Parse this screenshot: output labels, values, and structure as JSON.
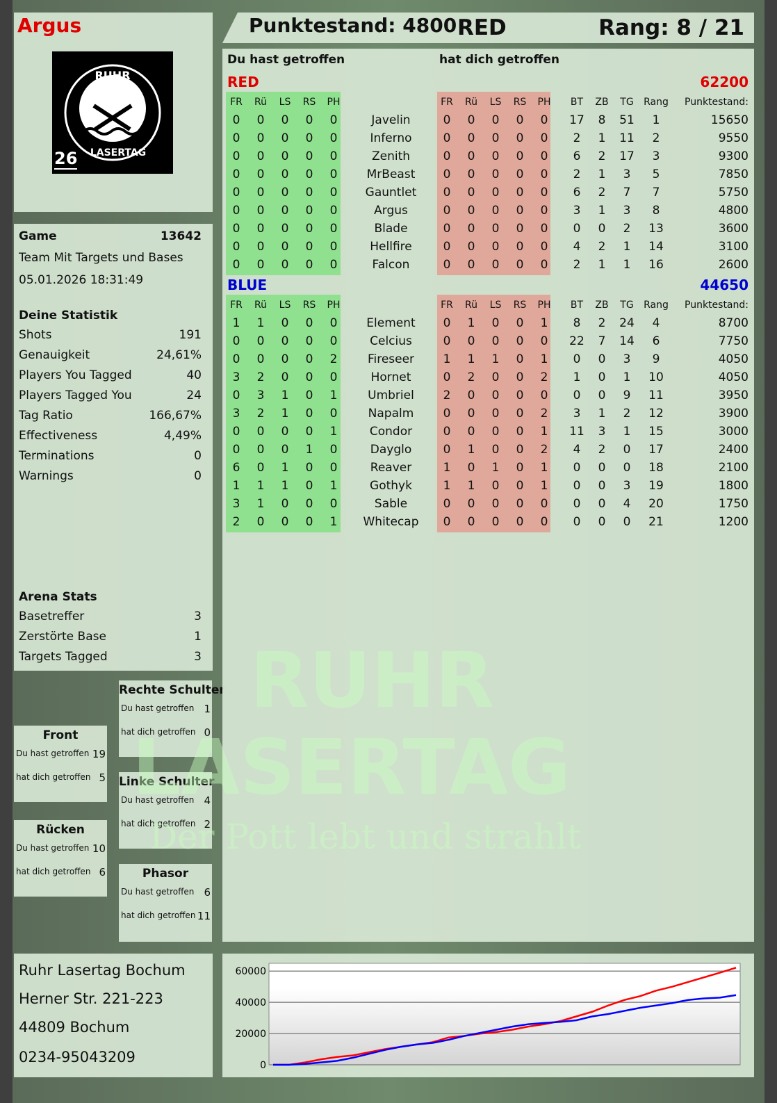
{
  "player": {
    "name": "Argus",
    "logo_text": "RUHR LASERTAG",
    "logo_number": "26"
  },
  "header": {
    "score_label": "Punktestand: 4800",
    "team": "RED",
    "rank_label": "Rang: 8 / 21"
  },
  "game": {
    "label": "Game",
    "id": "13642",
    "mode": "Team Mit Targets und Bases",
    "datetime": "05.01.2026 18:31:49"
  },
  "stats": {
    "title": "Deine Statistik",
    "items": [
      {
        "label": "Shots",
        "value": "191"
      },
      {
        "label": "Genauigkeit",
        "value": "24,61%"
      },
      {
        "label": "Players You Tagged",
        "value": "40"
      },
      {
        "label": "Players Tagged You",
        "value": "24"
      },
      {
        "label": "Tag Ratio",
        "value": "166,67%"
      },
      {
        "label": "Effectiveness",
        "value": "4,49%"
      },
      {
        "label": "Terminations",
        "value": "0"
      },
      {
        "label": "Warnings",
        "value": "0"
      }
    ]
  },
  "arena": {
    "title": "Arena Stats",
    "items": [
      {
        "label": "Basetreffer",
        "value": "3"
      },
      {
        "label": "Zerstörte Base",
        "value": "1"
      },
      {
        "label": "Targets Tagged",
        "value": "3"
      }
    ]
  },
  "zones": {
    "hit_label": "Du hast getroffen",
    "got_label": "hat dich getroffen",
    "items": [
      {
        "name": "Rechte Schulter",
        "hit": "1",
        "got": "0"
      },
      {
        "name": "Front",
        "hit": "19",
        "got": "5"
      },
      {
        "name": "Linke Schulter",
        "hit": "4",
        "got": "2"
      },
      {
        "name": "Rücken",
        "hit": "10",
        "got": "6"
      },
      {
        "name": "Phasor",
        "hit": "6",
        "got": "11"
      }
    ]
  },
  "address": {
    "lines": [
      "Ruhr Lasertag Bochum",
      "Herner Str. 221-223",
      "44809 Bochum",
      "0234-95043209"
    ]
  },
  "table": {
    "you_hit_label": "Du hast getroffen",
    "hit_you_label": "hat dich getroffen",
    "hit_cols": [
      "FR",
      "Rü",
      "LS",
      "RS",
      "PH"
    ],
    "stat_cols": [
      "BT",
      "ZB",
      "TG",
      "Rang",
      "Punktestand:"
    ],
    "colors": {
      "green": "#8fe08f",
      "red": "#e0a89a",
      "red_team": "#e00000",
      "blue_team": "#0000d0"
    },
    "teams": [
      {
        "name": "RED",
        "score": "62200",
        "color": "#e00000",
        "players": [
          {
            "name": "Javelin",
            "hit": [
              0,
              0,
              0,
              0,
              0
            ],
            "got": [
              0,
              0,
              0,
              0,
              0
            ],
            "stats": [
              17,
              8,
              51,
              1,
              15650
            ]
          },
          {
            "name": "Inferno",
            "hit": [
              0,
              0,
              0,
              0,
              0
            ],
            "got": [
              0,
              0,
              0,
              0,
              0
            ],
            "stats": [
              2,
              1,
              11,
              2,
              9550
            ]
          },
          {
            "name": "Zenith",
            "hit": [
              0,
              0,
              0,
              0,
              0
            ],
            "got": [
              0,
              0,
              0,
              0,
              0
            ],
            "stats": [
              6,
              2,
              17,
              3,
              9300
            ]
          },
          {
            "name": "MrBeast",
            "hit": [
              0,
              0,
              0,
              0,
              0
            ],
            "got": [
              0,
              0,
              0,
              0,
              0
            ],
            "stats": [
              2,
              1,
              3,
              5,
              7850
            ]
          },
          {
            "name": "Gauntlet",
            "hit": [
              0,
              0,
              0,
              0,
              0
            ],
            "got": [
              0,
              0,
              0,
              0,
              0
            ],
            "stats": [
              6,
              2,
              7,
              7,
              5750
            ]
          },
          {
            "name": "Argus",
            "hit": [
              0,
              0,
              0,
              0,
              0
            ],
            "got": [
              0,
              0,
              0,
              0,
              0
            ],
            "stats": [
              3,
              1,
              3,
              8,
              4800
            ]
          },
          {
            "name": "Blade",
            "hit": [
              0,
              0,
              0,
              0,
              0
            ],
            "got": [
              0,
              0,
              0,
              0,
              0
            ],
            "stats": [
              0,
              0,
              2,
              13,
              3600
            ]
          },
          {
            "name": "Hellfire",
            "hit": [
              0,
              0,
              0,
              0,
              0
            ],
            "got": [
              0,
              0,
              0,
              0,
              0
            ],
            "stats": [
              4,
              2,
              1,
              14,
              3100
            ]
          },
          {
            "name": "Falcon",
            "hit": [
              0,
              0,
              0,
              0,
              0
            ],
            "got": [
              0,
              0,
              0,
              0,
              0
            ],
            "stats": [
              2,
              1,
              1,
              16,
              2600
            ]
          }
        ]
      },
      {
        "name": "BLUE",
        "score": "44650",
        "color": "#0000d0",
        "players": [
          {
            "name": "Element",
            "hit": [
              1,
              1,
              0,
              0,
              0
            ],
            "got": [
              0,
              1,
              0,
              0,
              1
            ],
            "stats": [
              8,
              2,
              24,
              4,
              8700
            ]
          },
          {
            "name": "Celcius",
            "hit": [
              0,
              0,
              0,
              0,
              0
            ],
            "got": [
              0,
              0,
              0,
              0,
              0
            ],
            "stats": [
              22,
              7,
              14,
              6,
              7750
            ]
          },
          {
            "name": "Fireseer",
            "hit": [
              0,
              0,
              0,
              0,
              2
            ],
            "got": [
              1,
              1,
              1,
              0,
              1
            ],
            "stats": [
              0,
              0,
              3,
              9,
              4050
            ]
          },
          {
            "name": "Hornet",
            "hit": [
              3,
              2,
              0,
              0,
              0
            ],
            "got": [
              0,
              2,
              0,
              0,
              2
            ],
            "stats": [
              1,
              0,
              1,
              10,
              4050
            ]
          },
          {
            "name": "Umbriel",
            "hit": [
              0,
              3,
              1,
              0,
              1
            ],
            "got": [
              2,
              0,
              0,
              0,
              0
            ],
            "stats": [
              0,
              0,
              9,
              11,
              3950
            ]
          },
          {
            "name": "Napalm",
            "hit": [
              3,
              2,
              1,
              0,
              0
            ],
            "got": [
              0,
              0,
              0,
              0,
              2
            ],
            "stats": [
              3,
              1,
              2,
              12,
              3900
            ]
          },
          {
            "name": "Condor",
            "hit": [
              0,
              0,
              0,
              0,
              1
            ],
            "got": [
              0,
              0,
              0,
              0,
              1
            ],
            "stats": [
              11,
              3,
              1,
              15,
              3000
            ]
          },
          {
            "name": "Dayglo",
            "hit": [
              0,
              0,
              0,
              1,
              0
            ],
            "got": [
              0,
              1,
              0,
              0,
              2
            ],
            "stats": [
              4,
              2,
              0,
              17,
              2400
            ]
          },
          {
            "name": "Reaver",
            "hit": [
              6,
              0,
              1,
              0,
              0
            ],
            "got": [
              1,
              0,
              1,
              0,
              1
            ],
            "stats": [
              0,
              0,
              0,
              18,
              2100
            ]
          },
          {
            "name": "Gothyk",
            "hit": [
              1,
              1,
              1,
              0,
              1
            ],
            "got": [
              1,
              1,
              0,
              0,
              1
            ],
            "stats": [
              0,
              0,
              3,
              19,
              1800
            ]
          },
          {
            "name": "Sable",
            "hit": [
              3,
              1,
              0,
              0,
              0
            ],
            "got": [
              0,
              0,
              0,
              0,
              0
            ],
            "stats": [
              0,
              0,
              4,
              20,
              1750
            ]
          },
          {
            "name": "Whitecap",
            "hit": [
              2,
              0,
              0,
              0,
              1
            ],
            "got": [
              0,
              0,
              0,
              0,
              0
            ],
            "stats": [
              0,
              0,
              0,
              21,
              1200
            ]
          }
        ]
      }
    ]
  },
  "watermark": {
    "line1": "RUHR",
    "line2": "LASERTAG",
    "tagline": "Der Pott lebt und strahlt"
  },
  "chart_data": {
    "type": "line",
    "ylim": [
      0,
      62200
    ],
    "yticks": [
      "0",
      "20000",
      "40000",
      "60000"
    ],
    "grid": true,
    "series": [
      {
        "color": "#ff0000",
        "values": [
          0,
          0,
          1500,
          3500,
          5000,
          6000,
          8000,
          10000,
          11500,
          13000,
          14500,
          17500,
          18500,
          20000,
          21000,
          22500,
          24500,
          26000,
          28000,
          31000,
          34000,
          38000,
          41500,
          44000,
          47500,
          50000,
          53000,
          56000,
          59000,
          62200
        ]
      },
      {
        "color": "#0000ff",
        "values": [
          0,
          0,
          500,
          1500,
          2500,
          4500,
          7000,
          9500,
          11500,
          13000,
          14000,
          16000,
          18500,
          20500,
          22500,
          24500,
          26000,
          26800,
          27500,
          28500,
          31000,
          32500,
          34500,
          36500,
          38000,
          39500,
          41500,
          42500,
          43000,
          44650
        ]
      }
    ]
  }
}
